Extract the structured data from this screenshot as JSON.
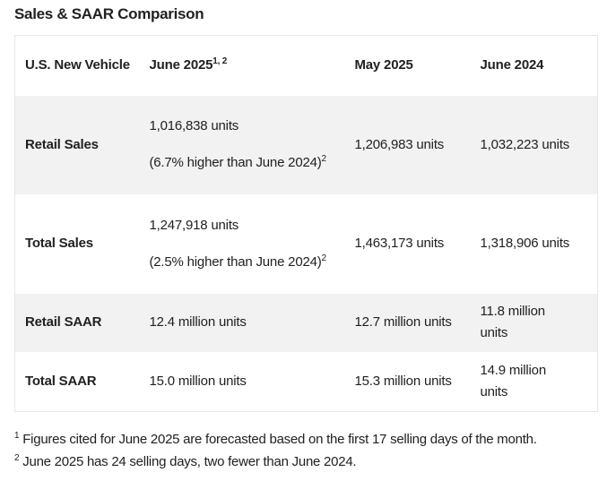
{
  "title": "Sales & SAAR Comparison",
  "table": {
    "headers": [
      "U.S. New Vehicle",
      "June 2025",
      "May 2025",
      "June 2024"
    ],
    "header_sup": "1, 2",
    "rows": [
      {
        "label": "Retail Sales",
        "june2025": "1,016,838 units",
        "june2025_note": "(6.7% higher than June 2024)",
        "note_sup": "2",
        "may2025": "1,206,983 units",
        "june2024": "1,032,223 units"
      },
      {
        "label": "Total Sales",
        "june2025": "1,247,918 units",
        "june2025_note": "(2.5% higher than June 2024)",
        "note_sup": "2",
        "may2025": "1,463,173 units",
        "june2024": "1,318,906 units"
      },
      {
        "label": "Retail SAAR",
        "june2025": "12.4 million units",
        "may2025": "12.7 million units",
        "june2024": "11.8 million units"
      },
      {
        "label": "Total SAAR",
        "june2025": "15.0 million units",
        "may2025": "15.3 million units",
        "june2024": "14.9 million units"
      }
    ]
  },
  "footnotes": [
    {
      "mark": "1",
      "text": "Figures cited for June 2025 are forecasted based on the first 17 selling days of the month."
    },
    {
      "mark": "2",
      "text": "June 2025 has 24 selling days, two fewer than June 2024."
    }
  ],
  "colors": {
    "shade": "#f2f2f2",
    "border": "#e6e6e6",
    "text": "#212121"
  }
}
